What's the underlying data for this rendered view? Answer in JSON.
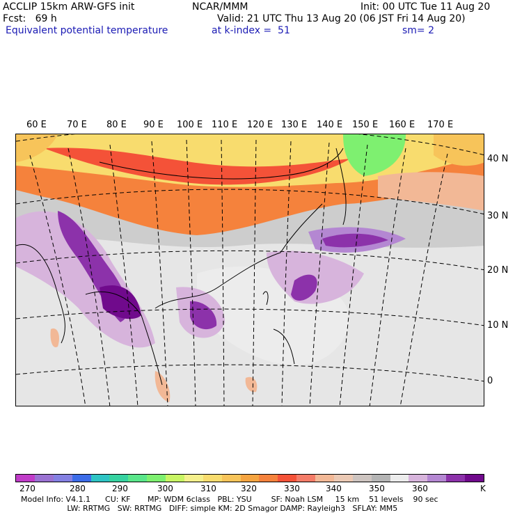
{
  "header": {
    "left_line1": "ACCLIP 15km ARW-GFS init",
    "center_line1": "NCAR/MMM",
    "right_line1": "Init: 00 UTC Tue 11 Aug 20",
    "left_line2": "Fcst:   69 h",
    "right_line2": "Valid: 21 UTC Thu 13 Aug 20 (06 JST Fri 14 Aug 20)",
    "field_name": "Equivalent potential temperature",
    "level": "at k-index =  51",
    "smoothing": "sm= 2"
  },
  "map": {
    "longitude_labels": [
      "60 E",
      "70 E",
      "80 E",
      "90 E",
      "100 E",
      "110 E",
      "120 E",
      "130 E",
      "140 E",
      "150 E",
      "160 E",
      "170 E"
    ],
    "latitude_labels": [
      "40 N",
      "30 N",
      "20 N",
      "10 N",
      "0"
    ]
  },
  "colorbar": {
    "colors": [
      "#c03cc8",
      "#9a72d2",
      "#8480e2",
      "#3c6ce8",
      "#2ec4c4",
      "#36d2a0",
      "#5ae68a",
      "#7ef070",
      "#c8f564",
      "#f5f08c",
      "#f8dc6e",
      "#f7c45a",
      "#f5a440",
      "#f5823c",
      "#f45238",
      "#f47c68",
      "#f2b896",
      "#ebc9b4",
      "#cdc4c0",
      "#b4b4b4",
      "#ececec",
      "#d7b4dc",
      "#b487d2",
      "#8c32aa",
      "#700a8c"
    ],
    "tick_labels": [
      "270",
      "280",
      "290",
      "300",
      "310",
      "320",
      "330",
      "340",
      "350",
      "360"
    ],
    "unit": "K"
  },
  "model_info": {
    "line1": "Model Info: V4.1.1      CU: KF       MP: WDM 6class   PBL: YSU        SF: Noah LSM     15 km    51 levels    90 sec",
    "line2": "                   LW: RRTMG   SW: RRTMG   DIFF: simple KM: 2D Smagor DAMP: Rayleigh3   SFLAY: MM5"
  }
}
